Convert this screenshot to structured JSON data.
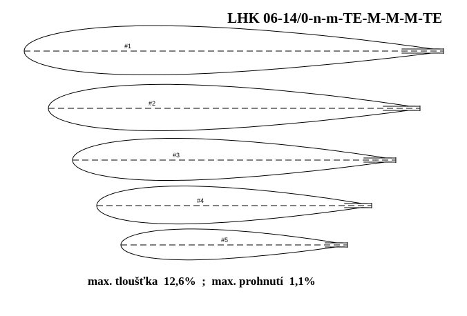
{
  "title": "LHK 06-14/0-n-m-TE-M-M-M-TE",
  "profiles": [
    "#1",
    "#2",
    "#3",
    "#4",
    "#5"
  ],
  "footer": "max. tloušťka  12,6%  ;  max. prohnutí  1,1%"
}
